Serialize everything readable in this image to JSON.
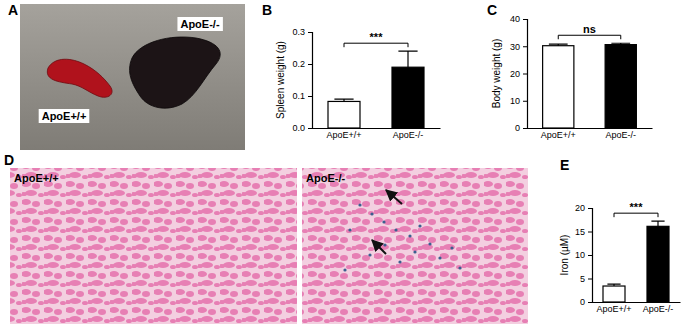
{
  "chart_data": [
    {
      "type": "bar",
      "title": "B",
      "y_label": "Spleen weight (g)",
      "categories": [
        "ApoE+/+",
        "ApoE-/-"
      ],
      "values": [
        0.083,
        0.19
      ],
      "errors": [
        0.007,
        0.05
      ],
      "colors": [
        "#ffffff",
        "#000000"
      ],
      "ylim": [
        0,
        0.3
      ],
      "yticks": [
        {
          "value": 0,
          "label": "0.0"
        },
        {
          "value": 0.1,
          "label": "0.1"
        },
        {
          "value": 0.2,
          "label": "0.2"
        },
        {
          "value": 0.3,
          "label": "0.3"
        }
      ],
      "annotations": [
        "***"
      ]
    },
    {
      "type": "bar",
      "title": "C",
      "y_label": "Body weight (g)",
      "categories": [
        "ApoE+/+",
        "ApoE-/-"
      ],
      "values": [
        30.2,
        30.6
      ],
      "errors": [
        0.6,
        0.5
      ],
      "colors": [
        "#ffffff",
        "#000000"
      ],
      "ylim": [
        0,
        40
      ],
      "yticks": [
        0,
        10,
        20,
        30,
        40
      ],
      "annotations": [
        "ns"
      ]
    },
    {
      "type": "bar",
      "title": "E",
      "y_label": "Iron (µM)",
      "categories": [
        "ApoE+/+",
        "ApoE-/-"
      ],
      "values": [
        3.4,
        16.1
      ],
      "errors": [
        0.4,
        1.1
      ],
      "colors": [
        "#ffffff",
        "#000000"
      ],
      "ylim": [
        0,
        20
      ],
      "yticks": [
        0,
        5,
        10,
        15,
        20
      ],
      "annotations": [
        "***"
      ]
    }
  ],
  "photos": [
    {
      "title": "A",
      "labels": [
        "ApoE+/+",
        "ApoE-/-"
      ]
    },
    {
      "title": "D",
      "labels": [
        "ApoE+/+",
        "ApoE-/-"
      ]
    }
  ]
}
